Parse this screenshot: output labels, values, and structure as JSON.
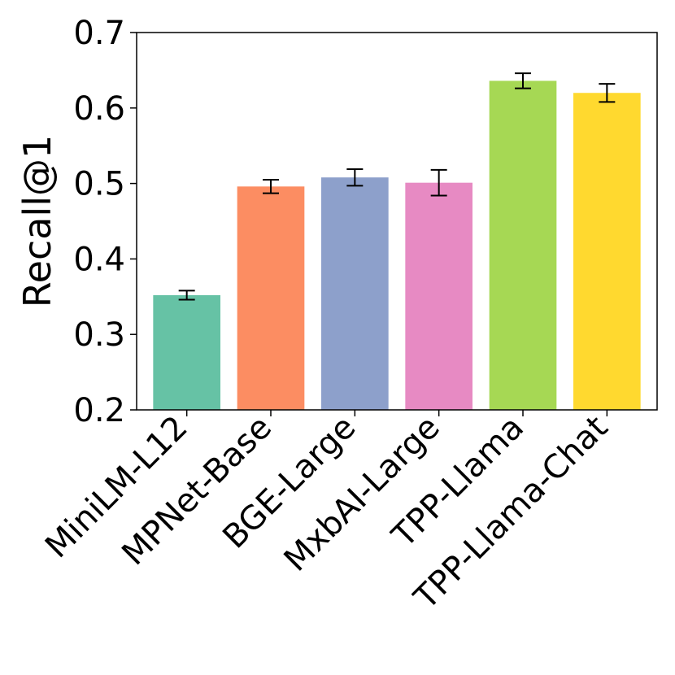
{
  "chart_data": {
    "type": "bar",
    "title": "",
    "xlabel": "",
    "ylabel": "Recall@1",
    "ylim": [
      0.2,
      0.7
    ],
    "yticks": [
      "0.2",
      "0.3",
      "0.4",
      "0.5",
      "0.6",
      "0.7"
    ],
    "grid": false,
    "categories": [
      "MiniLM-L12",
      "MPNet-Base",
      "BGE-Large",
      "MxbAI-Large",
      "TPP-Llama",
      "TPP-Llama-Chat"
    ],
    "values": [
      0.352,
      0.496,
      0.508,
      0.501,
      0.636,
      0.62
    ],
    "errors": [
      0.006,
      0.009,
      0.011,
      0.017,
      0.01,
      0.012
    ],
    "colors": [
      "#66c2a5",
      "#fc8d62",
      "#8da0cb",
      "#e78ac3",
      "#a6d854",
      "#ffd92f"
    ]
  }
}
